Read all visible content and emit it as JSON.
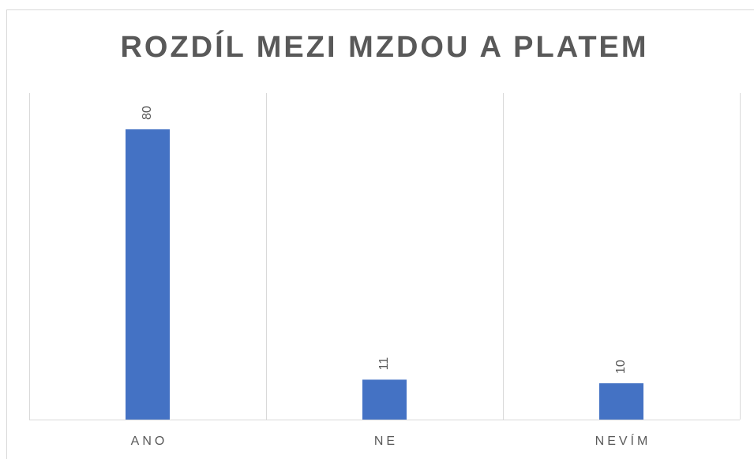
{
  "chart_data": {
    "type": "bar",
    "title": "ROZDÍL MEZI MZDOU A PLATEM",
    "categories": [
      "ANO",
      "NE",
      "NEVÍM"
    ],
    "values": [
      80,
      11,
      10
    ],
    "color": "#4472c4",
    "ylim": [
      0,
      90
    ]
  }
}
